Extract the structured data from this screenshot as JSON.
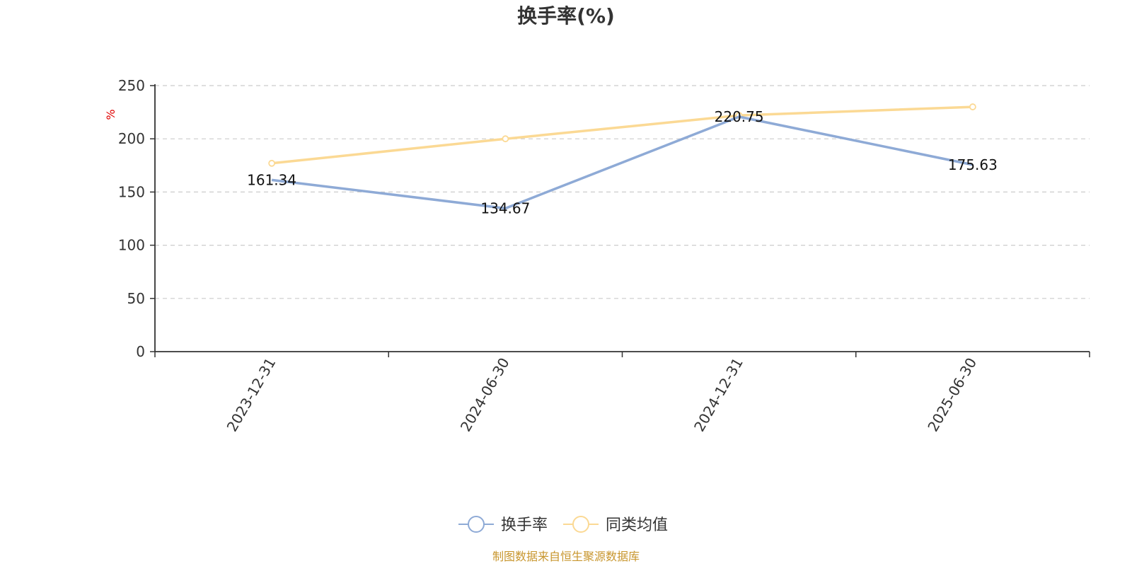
{
  "chart_data": {
    "type": "line",
    "title": "换手率(%)",
    "ylabel": "%",
    "ylim": [
      0,
      250
    ],
    "yticks": [
      0,
      50,
      100,
      150,
      200,
      250
    ],
    "categories": [
      "2023-12-31",
      "2024-06-30",
      "2024-12-31",
      "2025-06-30"
    ],
    "series": [
      {
        "name": "换手率",
        "values": [
          161.34,
          134.67,
          220.75,
          175.63
        ],
        "color": "#8eaad6",
        "show_labels": true
      },
      {
        "name": "同类均值",
        "values": [
          177,
          200,
          222,
          230
        ],
        "color": "#fbd994",
        "show_labels": false
      }
    ],
    "grid": true,
    "legend_position": "bottom-center",
    "source": "制图数据来自恒生聚源数据库"
  }
}
